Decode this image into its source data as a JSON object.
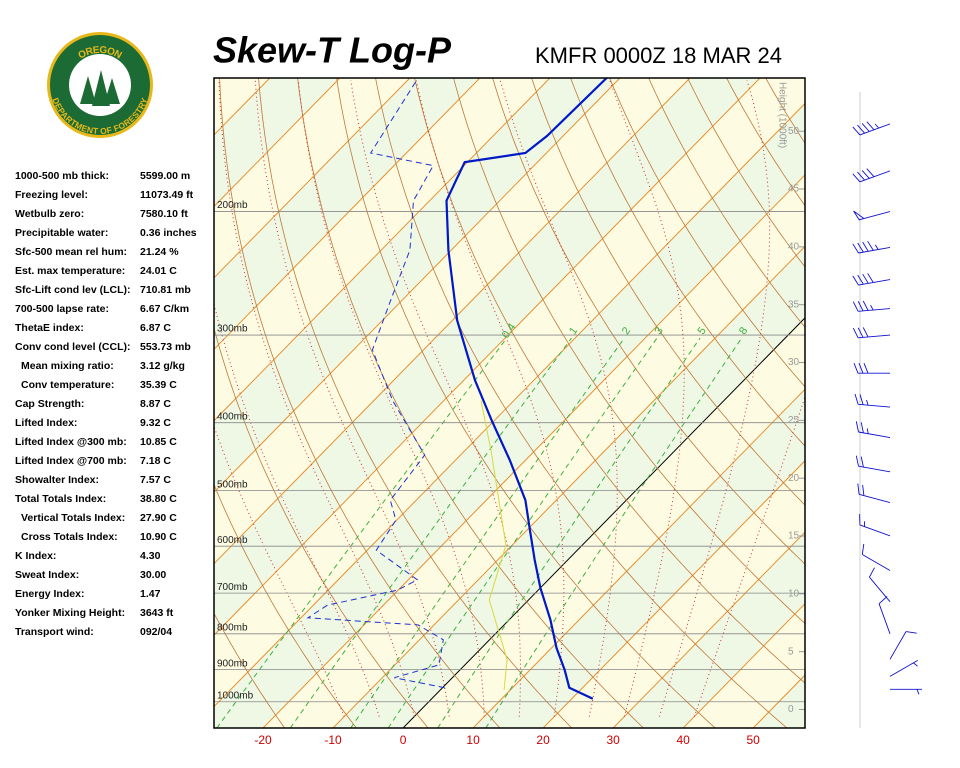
{
  "logo": {
    "top": "OREGON",
    "bottom": "DEPARTMENT OF FORESTRY"
  },
  "stats": [
    [
      "1000-500 mb thick:",
      "5599.00 m"
    ],
    [
      "Freezing level:",
      "11073.49 ft"
    ],
    [
      "Wetbulb zero:",
      "7580.10 ft"
    ],
    [
      "Precipitable water:",
      "0.36 inches"
    ],
    [
      "Sfc-500 mean rel hum:",
      "21.24 %"
    ],
    [
      "Est. max temperature:",
      "24.01 C"
    ],
    [
      "Sfc-Lift cond lev (LCL):",
      "710.81 mb"
    ],
    [
      "700-500 lapse rate:",
      "6.67 C/km"
    ],
    [
      "ThetaE index:",
      "6.87 C"
    ],
    [
      "Conv cond level (CCL):",
      "553.73 mb"
    ],
    [
      "Mean mixing ratio:",
      "3.12 g/kg"
    ],
    [
      "Conv temperature:",
      "35.39 C"
    ],
    [
      "Cap Strength:",
      "8.87 C"
    ],
    [
      "Lifted Index:",
      "9.32 C"
    ],
    [
      "Lifted Index @300 mb:",
      "10.85 C"
    ],
    [
      "Lifted Index @700 mb:",
      "7.18 C"
    ],
    [
      "Showalter Index:",
      "7.57 C"
    ],
    [
      "Total Totals Index:",
      "38.80 C"
    ],
    [
      "Vertical Totals Index:",
      "27.90 C"
    ],
    [
      "Cross Totals Index:",
      "10.90 C"
    ],
    [
      "K Index:",
      "4.30"
    ],
    [
      "Sweat Index:",
      "30.00"
    ],
    [
      "Energy Index:",
      "1.47"
    ],
    [
      "Yonker Mixing Height:",
      "3643 ft"
    ],
    [
      "Transport wind:",
      "092/04"
    ]
  ],
  "chart_data": {
    "type": "skew-t",
    "title": "Skew-T Log-P",
    "subtitle": "KMFR 0000Z 18 MAR 24",
    "xlim": [
      -27,
      57.4
    ],
    "xticks": [
      -20,
      -10,
      0,
      10,
      20,
      30,
      40,
      50
    ],
    "ylim": [
      1090,
      129
    ],
    "log_y": true,
    "pressure_ticks": [
      {
        "value": 1000,
        "label": "1000mb"
      },
      {
        "value": 900,
        "label": "900mb"
      },
      {
        "value": 800,
        "label": "800mb"
      },
      {
        "value": 700,
        "label": "700mb"
      },
      {
        "value": 600,
        "label": "600mb"
      },
      {
        "value": 500,
        "label": "500mb"
      },
      {
        "value": 400,
        "label": "400mb"
      },
      {
        "value": 300,
        "label": "300mb"
      },
      {
        "value": 200,
        "label": "200mb"
      }
    ],
    "y2_label": "Height (1000ft)",
    "y2lim": [
      -1.6,
      54.6
    ],
    "y2ticks": [
      0,
      5,
      10,
      15,
      20,
      25,
      30,
      35,
      40,
      45,
      50
    ],
    "mixing_ratio_labels": [
      {
        "value": 0.4,
        "label": "0.4"
      },
      1,
      2,
      3,
      5,
      8
    ],
    "series": [
      {
        "color": "#0018c8",
        "style": "solid",
        "pressure": [
          990,
          955,
          900,
          838,
          764,
          688,
          628,
          569,
          516,
          452,
          397,
          348,
          286,
          227,
          193,
          182,
          170,
          165,
          156,
          129
        ],
        "values": [
          23.0,
          18.1,
          14.9,
          10.7,
          5.9,
          0,
          -4.7,
          -9.6,
          -14.4,
          -22.3,
          -30.4,
          -38.4,
          -49.3,
          -60.4,
          -67.6,
          -68.9,
          -70.4,
          -63.0,
          -62.3,
          -61.9
        ]
      },
      {
        "color": "#2030d0",
        "style": "dashed",
        "pressure": [
          955,
          924,
          886,
          816,
          777,
          759,
          728,
          693,
          670,
          608,
          551,
          516,
          445,
          372,
          315,
          268,
          227,
          193,
          172,
          165,
          130
        ],
        "values": [
          0.3,
          -8.3,
          -3.7,
          -6.6,
          -12.3,
          -29,
          -28,
          -20.1,
          -18.7,
          -28.7,
          -30.1,
          -33.7,
          -35.1,
          -47.3,
          -57.3,
          -61.6,
          -65.9,
          -72.3,
          -74.4,
          -85.1,
          -88.7
        ]
      },
      {
        "color": "#d8d840",
        "style": "solid",
        "pressure": [
          962,
          871,
          716,
          598,
          438,
          372
        ],
        "values": [
          9.1,
          5.3,
          -5.6,
          -10.9,
          -26.3,
          -34.7
        ]
      }
    ],
    "winds": {
      "color": "#1010d0",
      "pressure": [
        150,
        175,
        200,
        225,
        250,
        275,
        300,
        340,
        380,
        420,
        470,
        520,
        580,
        650,
        720,
        800,
        870,
        920,
        960
      ],
      "direction": [
        250,
        250,
        255,
        260,
        260,
        265,
        265,
        270,
        275,
        280,
        280,
        285,
        290,
        300,
        320,
        340,
        30,
        60,
        90
      ],
      "speed": [
        45,
        40,
        50,
        45,
        40,
        35,
        30,
        30,
        25,
        25,
        20,
        20,
        15,
        10,
        10,
        10,
        10,
        5,
        5
      ]
    }
  }
}
